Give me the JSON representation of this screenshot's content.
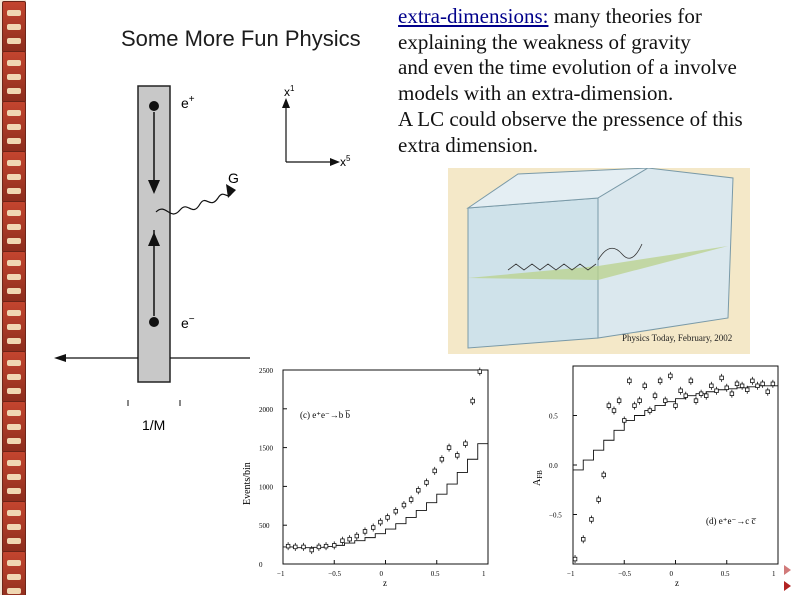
{
  "slide": {
    "title": "Some More Fun Physics",
    "heading_link": "extra-dimensions:",
    "body_lines": [
      " many theories for",
      "explaining the weakness of gravity",
      "and even the time evolution of a involve",
      "models with an extra-dimension.",
      "A LC could observe the pressence of this",
      "extra dimension."
    ],
    "image_credit": "Physics Today, February, 2002"
  },
  "diagram": {
    "e_plus": "e",
    "e_plus_sup": "+",
    "e_minus": "e",
    "e_minus_sup": "−",
    "graviton": "G",
    "axis_up": "x",
    "axis_up_sup": "1",
    "axis_right": "x",
    "axis_right_sup": "5",
    "scale": "1/M"
  },
  "colors": {
    "bar": "#c8c8c8",
    "link": "#00008b",
    "rail": "#b6402b"
  },
  "chart_data": [
    {
      "type": "scatter",
      "panel_label": "(c) e⁺e⁻→b b̅",
      "ylabel": "Events/bin",
      "xlabel": "z",
      "xlim": [
        -1,
        1
      ],
      "ylim": [
        0,
        2500
      ],
      "x_ticks": [
        "−1",
        "−0.5",
        "0",
        "0.5",
        "1"
      ],
      "y_ticks": [
        "0",
        "500",
        "1000",
        "1500",
        "2000",
        "2500"
      ],
      "series": [
        {
          "x": [
            -0.95,
            -0.88,
            -0.8,
            -0.72,
            -0.65,
            -0.58,
            -0.5,
            -0.42,
            -0.35,
            -0.28,
            -0.2,
            -0.12,
            -0.05,
            0.02,
            0.1,
            0.18,
            0.25,
            0.32,
            0.4,
            0.48,
            0.55,
            0.62,
            0.7,
            0.78,
            0.85,
            0.92
          ],
          "y": [
            230,
            220,
            220,
            180,
            220,
            230,
            240,
            300,
            320,
            360,
            420,
            470,
            540,
            600,
            680,
            760,
            830,
            950,
            1050,
            1200,
            1350,
            1500,
            1400,
            1550,
            2100,
            2480
          ]
        }
      ],
      "model_step": {
        "x": [
          -1,
          -0.9,
          -0.8,
          -0.7,
          -0.6,
          -0.5,
          -0.4,
          -0.3,
          -0.2,
          -0.1,
          0,
          0.1,
          0.2,
          0.3,
          0.4,
          0.5,
          0.6,
          0.7,
          0.8,
          0.9,
          1
        ],
        "y": [
          220,
          210,
          210,
          215,
          225,
          240,
          270,
          300,
          340,
          390,
          450,
          520,
          600,
          690,
          790,
          900,
          1030,
          1180,
          1350,
          1550,
          1550
        ]
      }
    },
    {
      "type": "scatter",
      "panel_label": "(d) e⁺e⁻→c c̅",
      "ylabel": "A",
      "ylabel_sub": "FB",
      "xlabel": "z",
      "xlim": [
        -1,
        1
      ],
      "ylim": [
        -1,
        1
      ],
      "x_ticks": [
        "−1",
        "−0.5",
        "0",
        "0.5",
        "1"
      ],
      "y_ticks": [
        "−0.5",
        "0.0",
        "0.5"
      ],
      "series": [
        {
          "x": [
            -0.98,
            -0.9,
            -0.82,
            -0.75,
            -0.7,
            -0.65,
            -0.6,
            -0.55,
            -0.5,
            -0.45,
            -0.4,
            -0.35,
            -0.3,
            -0.25,
            -0.2,
            -0.15,
            -0.1,
            -0.05,
            0,
            0.05,
            0.1,
            0.15,
            0.2,
            0.25,
            0.3,
            0.35,
            0.4,
            0.45,
            0.5,
            0.55,
            0.6,
            0.65,
            0.7,
            0.75,
            0.8,
            0.85,
            0.9,
            0.95
          ],
          "y": [
            -0.95,
            -0.75,
            -0.55,
            -0.35,
            -0.1,
            0.6,
            0.55,
            0.65,
            0.45,
            0.85,
            0.6,
            0.65,
            0.8,
            0.55,
            0.7,
            0.85,
            0.65,
            0.9,
            0.6,
            0.75,
            0.7,
            0.85,
            0.65,
            0.72,
            0.7,
            0.8,
            0.75,
            0.88,
            0.78,
            0.72,
            0.82,
            0.8,
            0.76,
            0.85,
            0.8,
            0.82,
            0.74,
            0.82
          ]
        }
      ],
      "model_step": {
        "x": [
          -1,
          -0.9,
          -0.8,
          -0.7,
          -0.6,
          -0.5,
          -0.4,
          -0.3,
          -0.2,
          -0.1,
          0,
          0.1,
          0.2,
          0.3,
          0.4,
          0.5,
          0.6,
          0.7,
          0.8,
          0.9,
          1
        ],
        "y": [
          -0.05,
          0.05,
          0.15,
          0.25,
          0.35,
          0.45,
          0.5,
          0.55,
          0.6,
          0.64,
          0.67,
          0.7,
          0.72,
          0.74,
          0.76,
          0.77,
          0.78,
          0.79,
          0.8,
          0.8,
          0.8
        ]
      }
    }
  ]
}
